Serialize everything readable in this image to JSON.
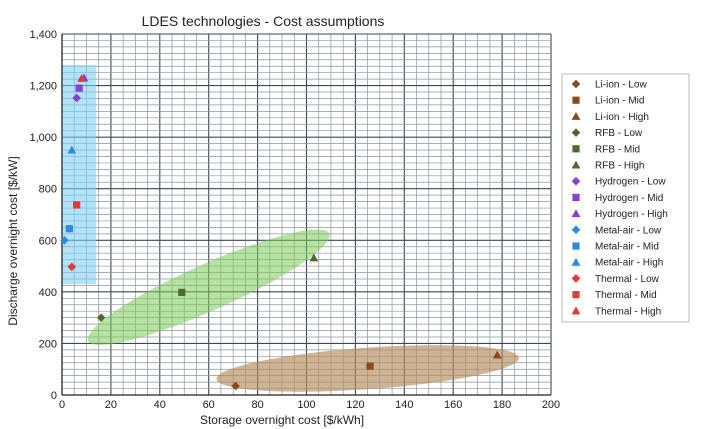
{
  "chart_data": {
    "type": "scatter",
    "title": "LDES technologies - Cost assumptions",
    "xlabel": "Storage overnight cost [$/kWh]",
    "ylabel": "Discharge overnight cost [$/kW]",
    "xlim": [
      0,
      200
    ],
    "ylim": [
      0,
      1400
    ],
    "x_ticks": [
      "0",
      "20",
      "40",
      "60",
      "80",
      "100",
      "120",
      "140",
      "160",
      "180",
      "200"
    ],
    "y_ticks": [
      "0",
      "200",
      "400",
      "600",
      "800",
      "1,000",
      "1,200",
      "1,400"
    ],
    "grid": true,
    "legend_position": "right",
    "series": [
      {
        "name": "Li-ion - Low",
        "marker": "diamond",
        "color": "#8B4A1C",
        "x": [
          71
        ],
        "y": [
          35
        ]
      },
      {
        "name": "Li-ion - Mid",
        "marker": "square",
        "color": "#8B4A1C",
        "x": [
          126
        ],
        "y": [
          112
        ]
      },
      {
        "name": "Li-ion - High",
        "marker": "triangle",
        "color": "#8B4A1C",
        "x": [
          178
        ],
        "y": [
          155
        ]
      },
      {
        "name": "RFB - Low",
        "marker": "diamond",
        "color": "#4E6B2E",
        "x": [
          16
        ],
        "y": [
          300
        ]
      },
      {
        "name": "RFB - Mid",
        "marker": "square",
        "color": "#4E6B2E",
        "x": [
          49
        ],
        "y": [
          398
        ]
      },
      {
        "name": "RFB - High",
        "marker": "triangle",
        "color": "#4E6B2E",
        "x": [
          103
        ],
        "y": [
          532
        ]
      },
      {
        "name": "Hydrogen - Low",
        "marker": "diamond",
        "color": "#8A3FD1",
        "x": [
          6
        ],
        "y": [
          1152
        ]
      },
      {
        "name": "Hydrogen - Mid",
        "marker": "square",
        "color": "#8A3FD1",
        "x": [
          7
        ],
        "y": [
          1190
        ]
      },
      {
        "name": "Hydrogen - High",
        "marker": "triangle",
        "color": "#8A3FD1",
        "x": [
          9
        ],
        "y": [
          1230
        ]
      },
      {
        "name": "Metal-air - Low",
        "marker": "diamond",
        "color": "#2E8BE0",
        "x": [
          1
        ],
        "y": [
          600
        ]
      },
      {
        "name": "Metal-air - Mid",
        "marker": "square",
        "color": "#2E8BE0",
        "x": [
          3
        ],
        "y": [
          645
        ]
      },
      {
        "name": "Metal-air - High",
        "marker": "triangle",
        "color": "#2E8BE0",
        "x": [
          4
        ],
        "y": [
          950
        ]
      },
      {
        "name": "Thermal - Low",
        "marker": "diamond",
        "color": "#E53935",
        "x": [
          4
        ],
        "y": [
          497
        ]
      },
      {
        "name": "Thermal - Mid",
        "marker": "square",
        "color": "#E53935",
        "x": [
          6
        ],
        "y": [
          737
        ]
      },
      {
        "name": "Thermal - High",
        "marker": "triangle",
        "color": "#E53935",
        "x": [
          8
        ],
        "y": [
          1228
        ]
      }
    ],
    "regions": [
      {
        "type": "rect",
        "color": "#7FD1F5",
        "opacity": 0.6,
        "xmin": 0,
        "xmax": 14,
        "ymin": 430,
        "ymax": 1280
      },
      {
        "type": "ellipse",
        "color": "#7DCB5A",
        "opacity": 0.55,
        "cx": 60,
        "cy": 418,
        "rx": 54,
        "ry": 9.5,
        "angle": 24
      },
      {
        "type": "ellipse",
        "color": "#B48C5C",
        "opacity": 0.65,
        "cx": 125,
        "cy": 103,
        "rx": 62,
        "ry": 8.5,
        "angle": 4
      }
    ]
  }
}
